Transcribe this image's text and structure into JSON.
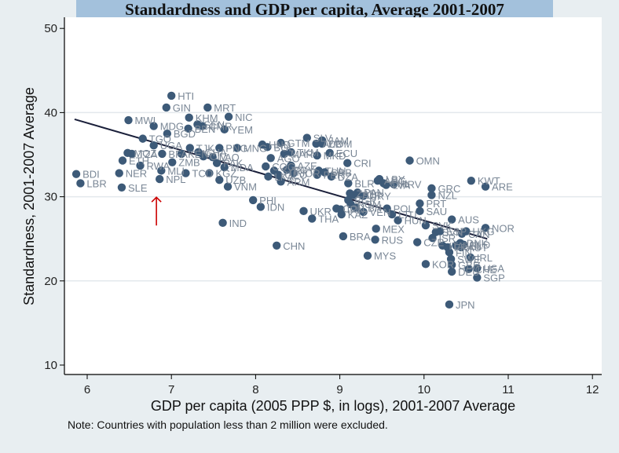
{
  "chart_data": {
    "type": "scatter",
    "title": "Standardness and GDP per capita, Average 2001-2007",
    "xlabel": "GDP per capita (2005 PPP $, in logs), 2001-2007 Average",
    "ylabel": "Standardness, 2001-2007 Average",
    "note": "Note: Countries with population less than 2 million were excluded.",
    "xlim": [
      5.75,
      12.1
    ],
    "ylim": [
      9.0,
      51.3
    ],
    "xticks": [
      6,
      7,
      8,
      9,
      10,
      11,
      12
    ],
    "yticks": [
      10,
      20,
      30,
      40,
      50
    ],
    "grid": true,
    "colors": {
      "marker": "#3d5a78",
      "label": "#7a8796",
      "fit_line": "#1a1f3a",
      "annotation_arrow": "#cc0000",
      "title_bg": "#a3c1dc",
      "background": "#e8eef1",
      "plot_bg": "#ffffff"
    },
    "fit_line": {
      "x": [
        5.85,
        10.75
      ],
      "y": [
        39.2,
        25.0
      ]
    },
    "annotation": {
      "type": "arrow",
      "target": "NPL",
      "x": 6.85,
      "y": 30.5
    },
    "points": [
      {
        "label": "BDI",
        "x": 5.87,
        "y": 32.7
      },
      {
        "label": "LBR",
        "x": 5.92,
        "y": 31.6
      },
      {
        "label": "SLE",
        "x": 6.41,
        "y": 31.1
      },
      {
        "label": "NER",
        "x": 6.38,
        "y": 32.8
      },
      {
        "label": "ETH",
        "x": 6.42,
        "y": 34.3
      },
      {
        "label": "MWI",
        "x": 6.49,
        "y": 39.1
      },
      {
        "label": "MOZ",
        "x": 6.48,
        "y": 35.2
      },
      {
        "label": "TZA",
        "x": 6.53,
        "y": 35.1
      },
      {
        "label": "RWA",
        "x": 6.63,
        "y": 33.7
      },
      {
        "label": "TGO",
        "x": 6.66,
        "y": 36.9
      },
      {
        "label": "UGA",
        "x": 6.79,
        "y": 36.1
      },
      {
        "label": "MDG",
        "x": 6.79,
        "y": 38.4
      },
      {
        "label": "NPL",
        "x": 6.86,
        "y": 32.1
      },
      {
        "label": "MLI",
        "x": 6.88,
        "y": 33.1
      },
      {
        "label": "BFA",
        "x": 6.89,
        "y": 35.1
      },
      {
        "label": "GIN",
        "x": 6.94,
        "y": 40.6
      },
      {
        "label": "HTI",
        "x": 7.0,
        "y": 42.0
      },
      {
        "label": "BGD",
        "x": 6.95,
        "y": 37.5
      },
      {
        "label": "ZMB",
        "x": 7.01,
        "y": 34.1
      },
      {
        "label": "KEN",
        "x": 7.12,
        "y": 35.1
      },
      {
        "label": "TCD",
        "x": 7.17,
        "y": 32.8
      },
      {
        "label": "KHM",
        "x": 7.21,
        "y": 39.4
      },
      {
        "label": "BEN",
        "x": 7.2,
        "y": 38.1
      },
      {
        "label": "TJK",
        "x": 7.22,
        "y": 35.8
      },
      {
        "label": "GHA",
        "x": 7.32,
        "y": 35.3
      },
      {
        "label": "CIV",
        "x": 7.38,
        "y": 34.8
      },
      {
        "label": "SEN",
        "x": 7.31,
        "y": 38.6
      },
      {
        "label": "CMR",
        "x": 7.37,
        "y": 38.4
      },
      {
        "label": "MRT",
        "x": 7.43,
        "y": 40.6
      },
      {
        "label": "KGZ",
        "x": 7.45,
        "y": 32.8
      },
      {
        "label": "PAK",
        "x": 7.54,
        "y": 34.0
      },
      {
        "label": "LAO",
        "x": 7.49,
        "y": 34.7
      },
      {
        "label": "PNG",
        "x": 7.57,
        "y": 35.8
      },
      {
        "label": "UZB",
        "x": 7.57,
        "y": 32.0
      },
      {
        "label": "MDA",
        "x": 7.63,
        "y": 33.5
      },
      {
        "label": "NIC",
        "x": 7.68,
        "y": 39.5
      },
      {
        "label": "YEM",
        "x": 7.63,
        "y": 38.0
      },
      {
        "label": "VNM",
        "x": 7.67,
        "y": 31.2
      },
      {
        "label": "IND",
        "x": 7.61,
        "y": 26.9
      },
      {
        "label": "MNG",
        "x": 7.78,
        "y": 35.8
      },
      {
        "label": "PHI",
        "x": 7.97,
        "y": 29.6
      },
      {
        "label": "IDN",
        "x": 8.06,
        "y": 28.8
      },
      {
        "label": "HND",
        "x": 8.08,
        "y": 36.2
      },
      {
        "label": "BOL",
        "x": 8.14,
        "y": 35.9
      },
      {
        "label": "COG",
        "x": 8.12,
        "y": 33.6
      },
      {
        "label": "SYR",
        "x": 8.22,
        "y": 33.1
      },
      {
        "label": "LKA",
        "x": 8.15,
        "y": 32.4
      },
      {
        "label": "GEO",
        "x": 8.27,
        "y": 32.6
      },
      {
        "label": "ARM",
        "x": 8.3,
        "y": 31.8
      },
      {
        "label": "AGO",
        "x": 8.18,
        "y": 34.6
      },
      {
        "label": "GTM",
        "x": 8.3,
        "y": 36.4
      },
      {
        "label": "MAR",
        "x": 8.34,
        "y": 35.1
      },
      {
        "label": "TKM",
        "x": 8.42,
        "y": 35.3
      },
      {
        "label": "AZE",
        "x": 8.42,
        "y": 33.7
      },
      {
        "label": "CHN",
        "x": 8.25,
        "y": 24.2
      },
      {
        "label": "EGY",
        "x": 8.37,
        "y": 33.2
      },
      {
        "label": "JOR",
        "x": 8.45,
        "y": 32.8
      },
      {
        "label": "ECU",
        "x": 8.88,
        "y": 35.2
      },
      {
        "label": "SLV",
        "x": 8.61,
        "y": 37.0
      },
      {
        "label": "JAM",
        "x": 8.79,
        "y": 36.7
      },
      {
        "label": "ALB",
        "x": 8.72,
        "y": 36.3
      },
      {
        "label": "DOM",
        "x": 8.79,
        "y": 36.3
      },
      {
        "label": "THA",
        "x": 8.67,
        "y": 27.4
      },
      {
        "label": "UKR",
        "x": 8.57,
        "y": 28.3
      },
      {
        "label": "MKD",
        "x": 8.73,
        "y": 34.9
      },
      {
        "label": "CRI",
        "x": 9.09,
        "y": 34.0
      },
      {
        "label": "TUN",
        "x": 8.75,
        "y": 33.1
      },
      {
        "label": "PER",
        "x": 8.73,
        "y": 32.6
      },
      {
        "label": "SRB",
        "x": 8.82,
        "y": 32.9
      },
      {
        "label": "DZA",
        "x": 8.9,
        "y": 32.4
      },
      {
        "label": "BRA",
        "x": 9.04,
        "y": 25.3
      },
      {
        "label": "KAZ",
        "x": 9.02,
        "y": 27.9
      },
      {
        "label": "IRN",
        "x": 9.01,
        "y": 28.5
      },
      {
        "label": "COL",
        "x": 8.96,
        "y": 28.6
      },
      {
        "label": "BLR",
        "x": 9.1,
        "y": 31.6
      },
      {
        "label": "ZAF",
        "x": 9.12,
        "y": 30.4
      },
      {
        "label": "TUR",
        "x": 9.17,
        "y": 30.2
      },
      {
        "label": "BGR",
        "x": 9.1,
        "y": 29.6
      },
      {
        "label": "ROM",
        "x": 9.13,
        "y": 29.1
      },
      {
        "label": "PAN",
        "x": 9.21,
        "y": 30.5
      },
      {
        "label": "URY",
        "x": 9.28,
        "y": 30.1
      },
      {
        "label": "LBN",
        "x": 9.19,
        "y": 28.7
      },
      {
        "label": "VEN",
        "x": 9.28,
        "y": 28.2
      },
      {
        "label": "MEX",
        "x": 9.43,
        "y": 26.2
      },
      {
        "label": "RUS",
        "x": 9.42,
        "y": 24.9
      },
      {
        "label": "MYS",
        "x": 9.33,
        "y": 23.0
      },
      {
        "label": "LBY",
        "x": 9.47,
        "y": 32.1
      },
      {
        "label": "CHL",
        "x": 9.52,
        "y": 31.6
      },
      {
        "label": "ARG",
        "x": 9.45,
        "y": 31.9
      },
      {
        "label": "LVA",
        "x": 9.55,
        "y": 31.4
      },
      {
        "label": "HRV",
        "x": 9.64,
        "y": 31.5
      },
      {
        "label": "POL",
        "x": 9.56,
        "y": 28.6
      },
      {
        "label": "HUN",
        "x": 9.69,
        "y": 27.2
      },
      {
        "label": "LTU",
        "x": 9.62,
        "y": 27.9
      },
      {
        "label": "OMN",
        "x": 9.83,
        "y": 34.3
      },
      {
        "label": "PRT",
        "x": 9.95,
        "y": 29.2
      },
      {
        "label": "SAU",
        "x": 9.95,
        "y": 28.3
      },
      {
        "label": "CZE",
        "x": 9.92,
        "y": 24.6
      },
      {
        "label": "SVK",
        "x": 10.02,
        "y": 26.6
      },
      {
        "label": "KOR",
        "x": 10.02,
        "y": 22.0
      },
      {
        "label": "GRC",
        "x": 10.09,
        "y": 31.0
      },
      {
        "label": "NZL",
        "x": 10.09,
        "y": 30.2
      },
      {
        "label": "ISR",
        "x": 10.1,
        "y": 25.1
      },
      {
        "label": "SVN",
        "x": 10.14,
        "y": 25.8
      },
      {
        "label": "ESP",
        "x": 10.19,
        "y": 25.9
      },
      {
        "label": "ITA",
        "x": 10.22,
        "y": 24.2
      },
      {
        "label": "FRA",
        "x": 10.28,
        "y": 24.0
      },
      {
        "label": "FIN",
        "x": 10.3,
        "y": 23.4
      },
      {
        "label": "JPN",
        "x": 10.3,
        "y": 17.2
      },
      {
        "label": "SWE",
        "x": 10.32,
        "y": 22.6
      },
      {
        "label": "GBR",
        "x": 10.33,
        "y": 21.9
      },
      {
        "label": "AUS",
        "x": 10.33,
        "y": 27.3
      },
      {
        "label": "DEU",
        "x": 10.33,
        "y": 21.1
      },
      {
        "label": "BEL",
        "x": 10.38,
        "y": 24.2
      },
      {
        "label": "DNK",
        "x": 10.43,
        "y": 24.5
      },
      {
        "label": "AUT",
        "x": 10.44,
        "y": 24.0
      },
      {
        "label": "CAN",
        "x": 10.45,
        "y": 25.6
      },
      {
        "label": "NLD",
        "x": 10.47,
        "y": 24.3
      },
      {
        "label": "HKG",
        "x": 10.5,
        "y": 25.9
      },
      {
        "label": "IRL",
        "x": 10.55,
        "y": 22.8
      },
      {
        "label": "CHE",
        "x": 10.53,
        "y": 21.4
      },
      {
        "label": "KWT",
        "x": 10.56,
        "y": 31.9
      },
      {
        "label": "ARE",
        "x": 10.73,
        "y": 31.2
      },
      {
        "label": "USA",
        "x": 10.63,
        "y": 21.5
      },
      {
        "label": "NOR",
        "x": 10.73,
        "y": 26.3
      },
      {
        "label": "SGP",
        "x": 10.63,
        "y": 20.4
      }
    ]
  }
}
